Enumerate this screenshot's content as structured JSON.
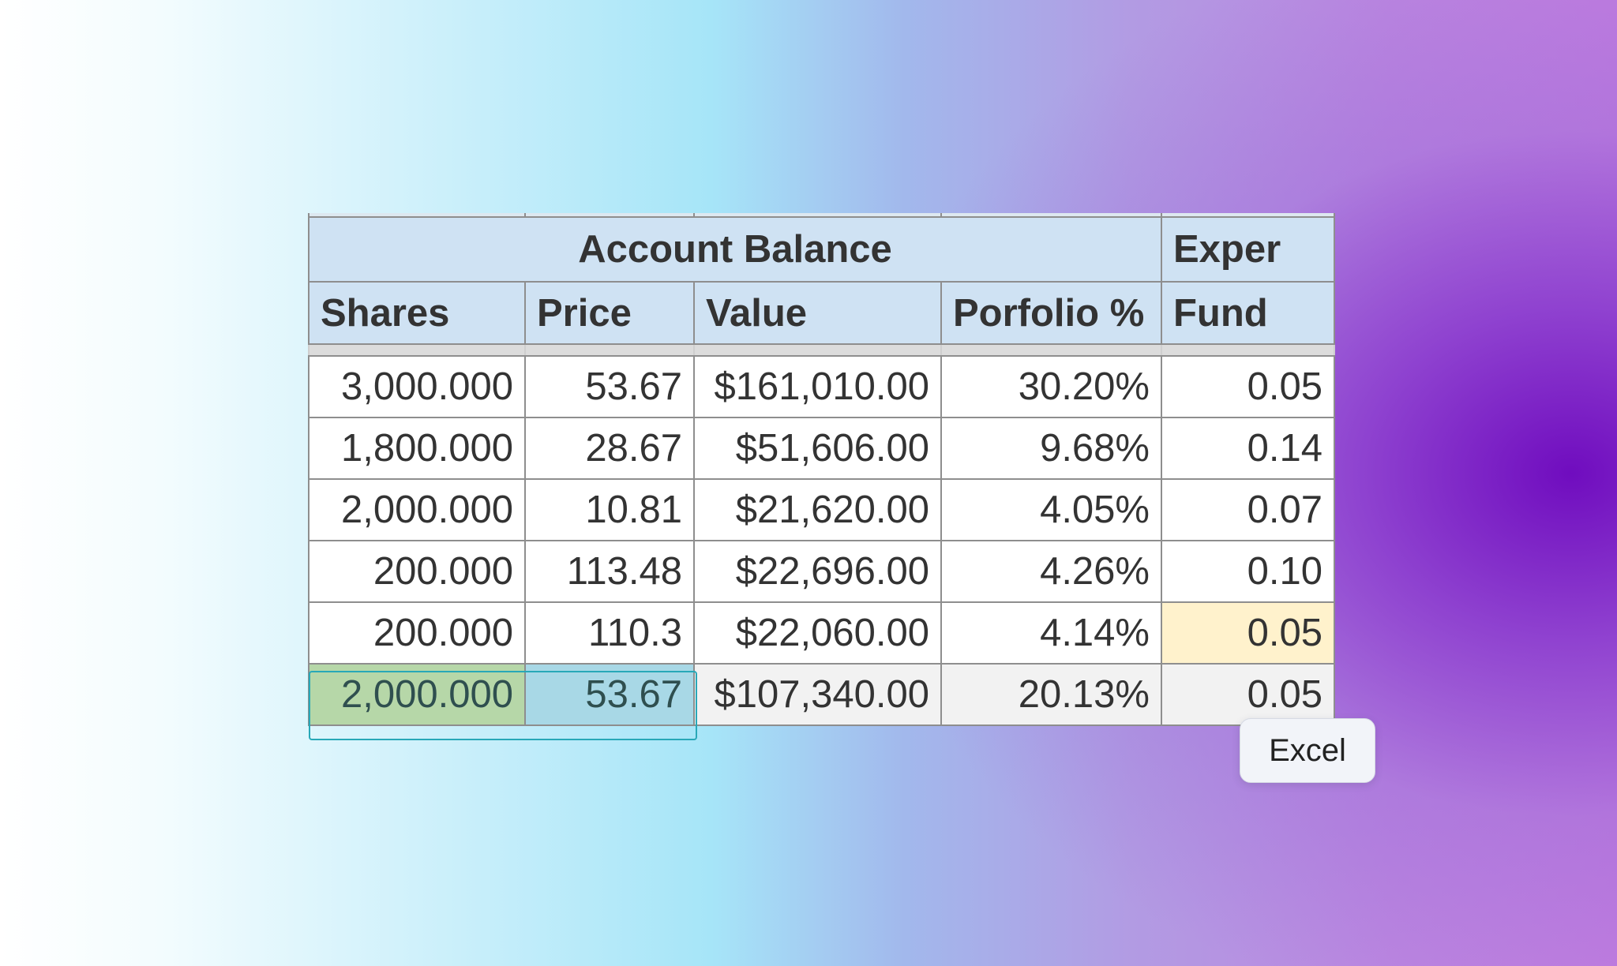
{
  "sheet": {
    "group_headers": {
      "account_balance": "Account Balance",
      "expense": "Exper"
    },
    "columns": [
      "Shares",
      "Price",
      "Value",
      "Porfolio %",
      "Fund"
    ],
    "rows": [
      {
        "shares": "3,000.000",
        "price": "53.67",
        "value": "$161,010.00",
        "portfolio": "30.20%",
        "fund": "0.05"
      },
      {
        "shares": "1,800.000",
        "price": "28.67",
        "value": "$51,606.00",
        "portfolio": "9.68%",
        "fund": "0.14"
      },
      {
        "shares": "2,000.000",
        "price": "10.81",
        "value": "$21,620.00",
        "portfolio": "4.05%",
        "fund": "0.07"
      },
      {
        "shares": "200.000",
        "price": "113.48",
        "value": "$22,696.00",
        "portfolio": "4.26%",
        "fund": "0.10"
      },
      {
        "shares": "200.000",
        "price": "110.3",
        "value": "$22,060.00",
        "portfolio": "4.14%",
        "fund": "0.05"
      },
      {
        "shares": "2,000.000",
        "price": "53.67",
        "value": "$107,340.00",
        "portfolio": "20.13%",
        "fund": "0.05"
      }
    ]
  },
  "tooltip": {
    "label": "Excel"
  },
  "colors": {
    "header_fill": "#cfe2f3",
    "shares_fill": "#fff2cc",
    "selected_shares_fill": "#b6d7a8",
    "selected_price_fill": "#a8d8e6",
    "selection_border": "#28a8b8"
  }
}
